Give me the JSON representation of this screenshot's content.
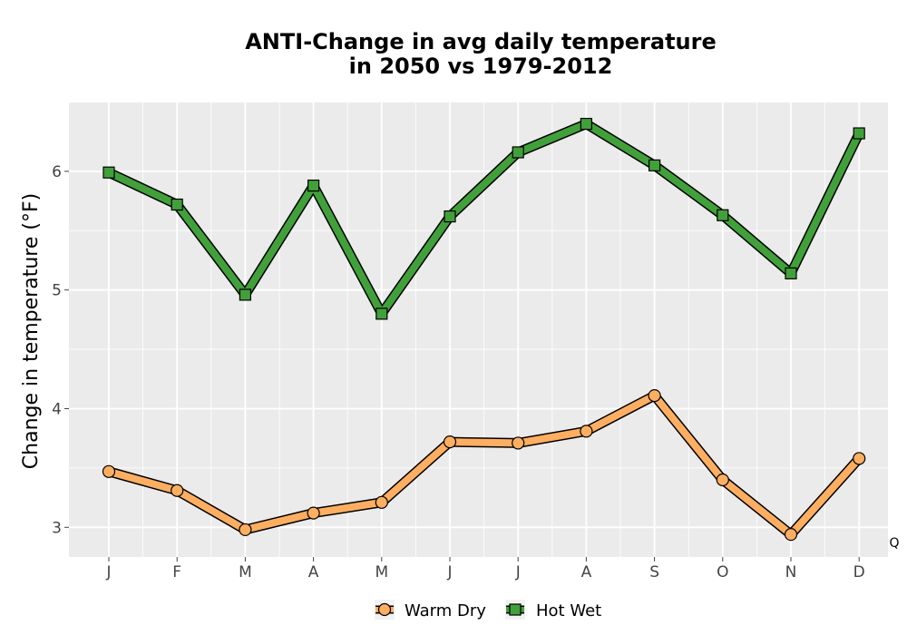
{
  "chart_data": {
    "type": "line",
    "title_line1": "ANTI-Change in avg daily temperature",
    "title_line2": "in 2050 vs 1979-2012",
    "xlabel": "",
    "ylabel": "Change in temperature (°F)",
    "categories": [
      "J",
      "F",
      "M",
      "A",
      "M",
      "J",
      "J",
      "A",
      "S",
      "O",
      "N",
      "D"
    ],
    "ylim": [
      2.75,
      6.58
    ],
    "yticks": [
      3,
      4,
      5,
      6
    ],
    "grid": true,
    "legend_position": "bottom",
    "annotation": "Q",
    "series": [
      {
        "name": "Warm Dry",
        "marker": "circle",
        "color": "#fdae61",
        "values": [
          3.47,
          3.31,
          2.98,
          3.12,
          3.21,
          3.72,
          3.71,
          3.81,
          4.11,
          3.4,
          2.94,
          3.58
        ]
      },
      {
        "name": "Hot Wet",
        "marker": "square",
        "color": "#41a03a",
        "values": [
          5.99,
          5.72,
          4.96,
          5.88,
          4.8,
          5.62,
          6.16,
          6.4,
          6.05,
          5.63,
          5.14,
          6.32
        ]
      }
    ]
  }
}
